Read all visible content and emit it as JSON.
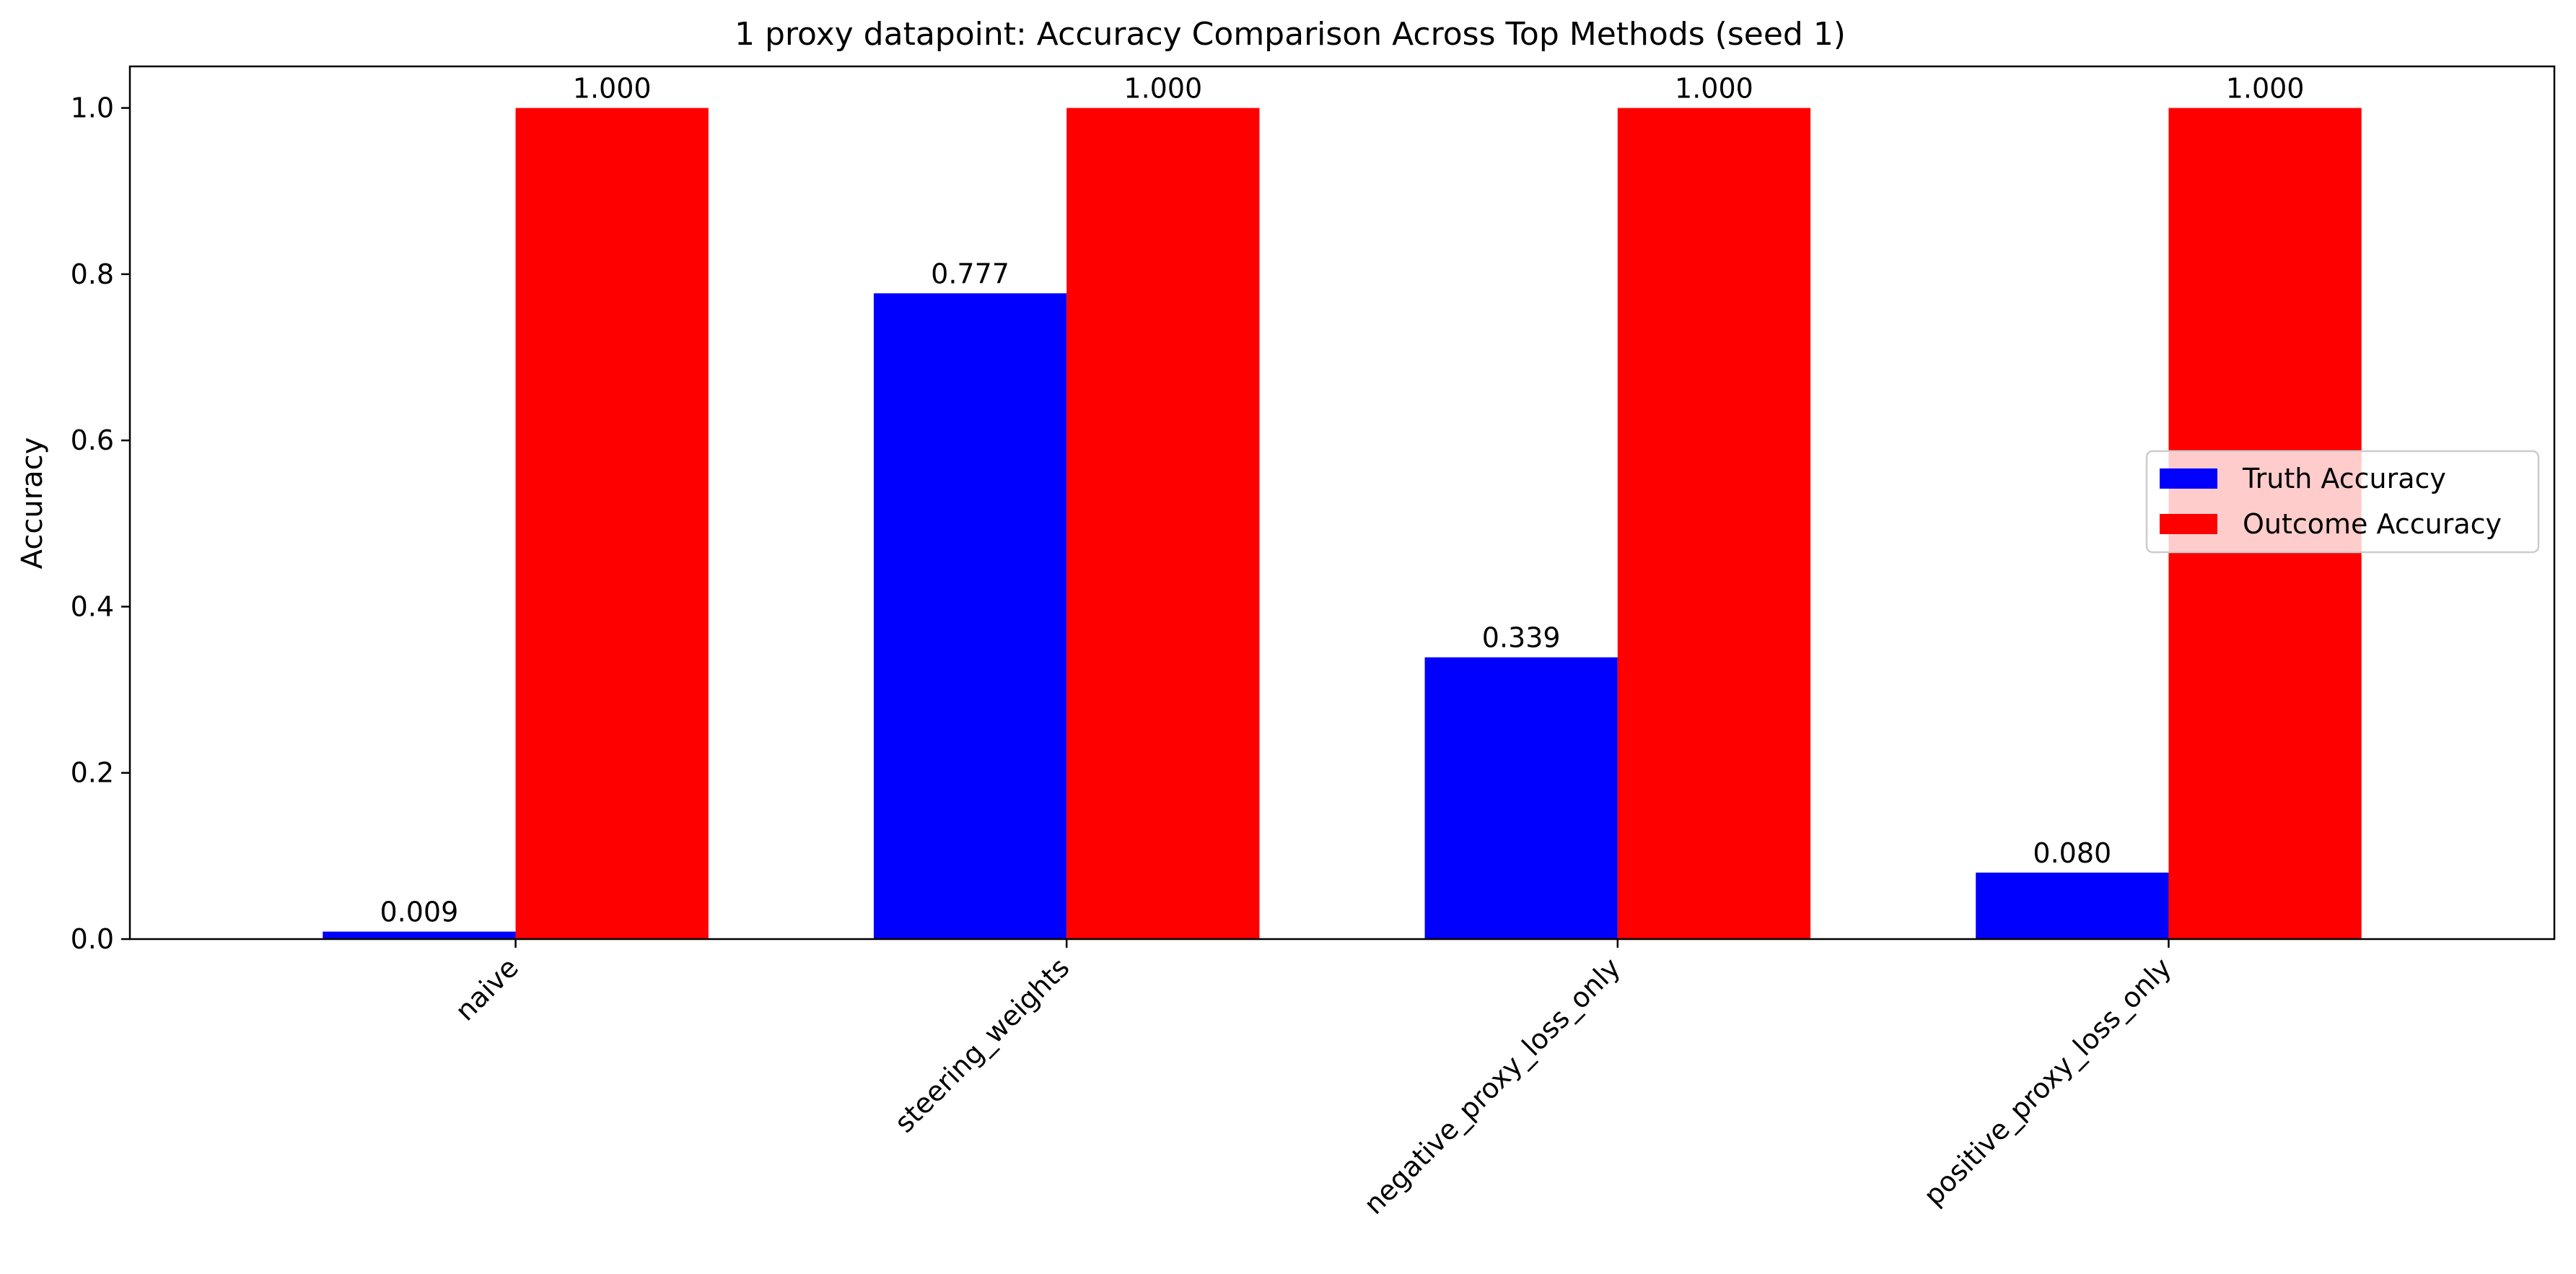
{
  "chart_data": {
    "type": "bar",
    "title": "1 proxy datapoint: Accuracy Comparison Across Top Methods (seed 1)",
    "xlabel": "",
    "ylabel": "Accuracy",
    "ylim": [
      0,
      1.05
    ],
    "yticks": [
      "0.0",
      "0.2",
      "0.4",
      "0.6",
      "0.8",
      "1.0"
    ],
    "categories": [
      "naive",
      "steering_weights",
      "negative_proxy_loss_only",
      "positive_proxy_loss_only"
    ],
    "series": [
      {
        "name": "Truth Accuracy",
        "color": "#0000ff",
        "values": [
          0.009,
          0.777,
          0.339,
          0.08
        ],
        "labels": [
          "0.009",
          "0.777",
          "0.339",
          "0.080"
        ]
      },
      {
        "name": "Outcome Accuracy",
        "color": "#ff0000",
        "values": [
          1.0,
          1.0,
          1.0,
          1.0
        ],
        "labels": [
          "1.000",
          "1.000",
          "1.000",
          "1.000"
        ]
      }
    ],
    "legend": "center-right",
    "grid": false
  }
}
